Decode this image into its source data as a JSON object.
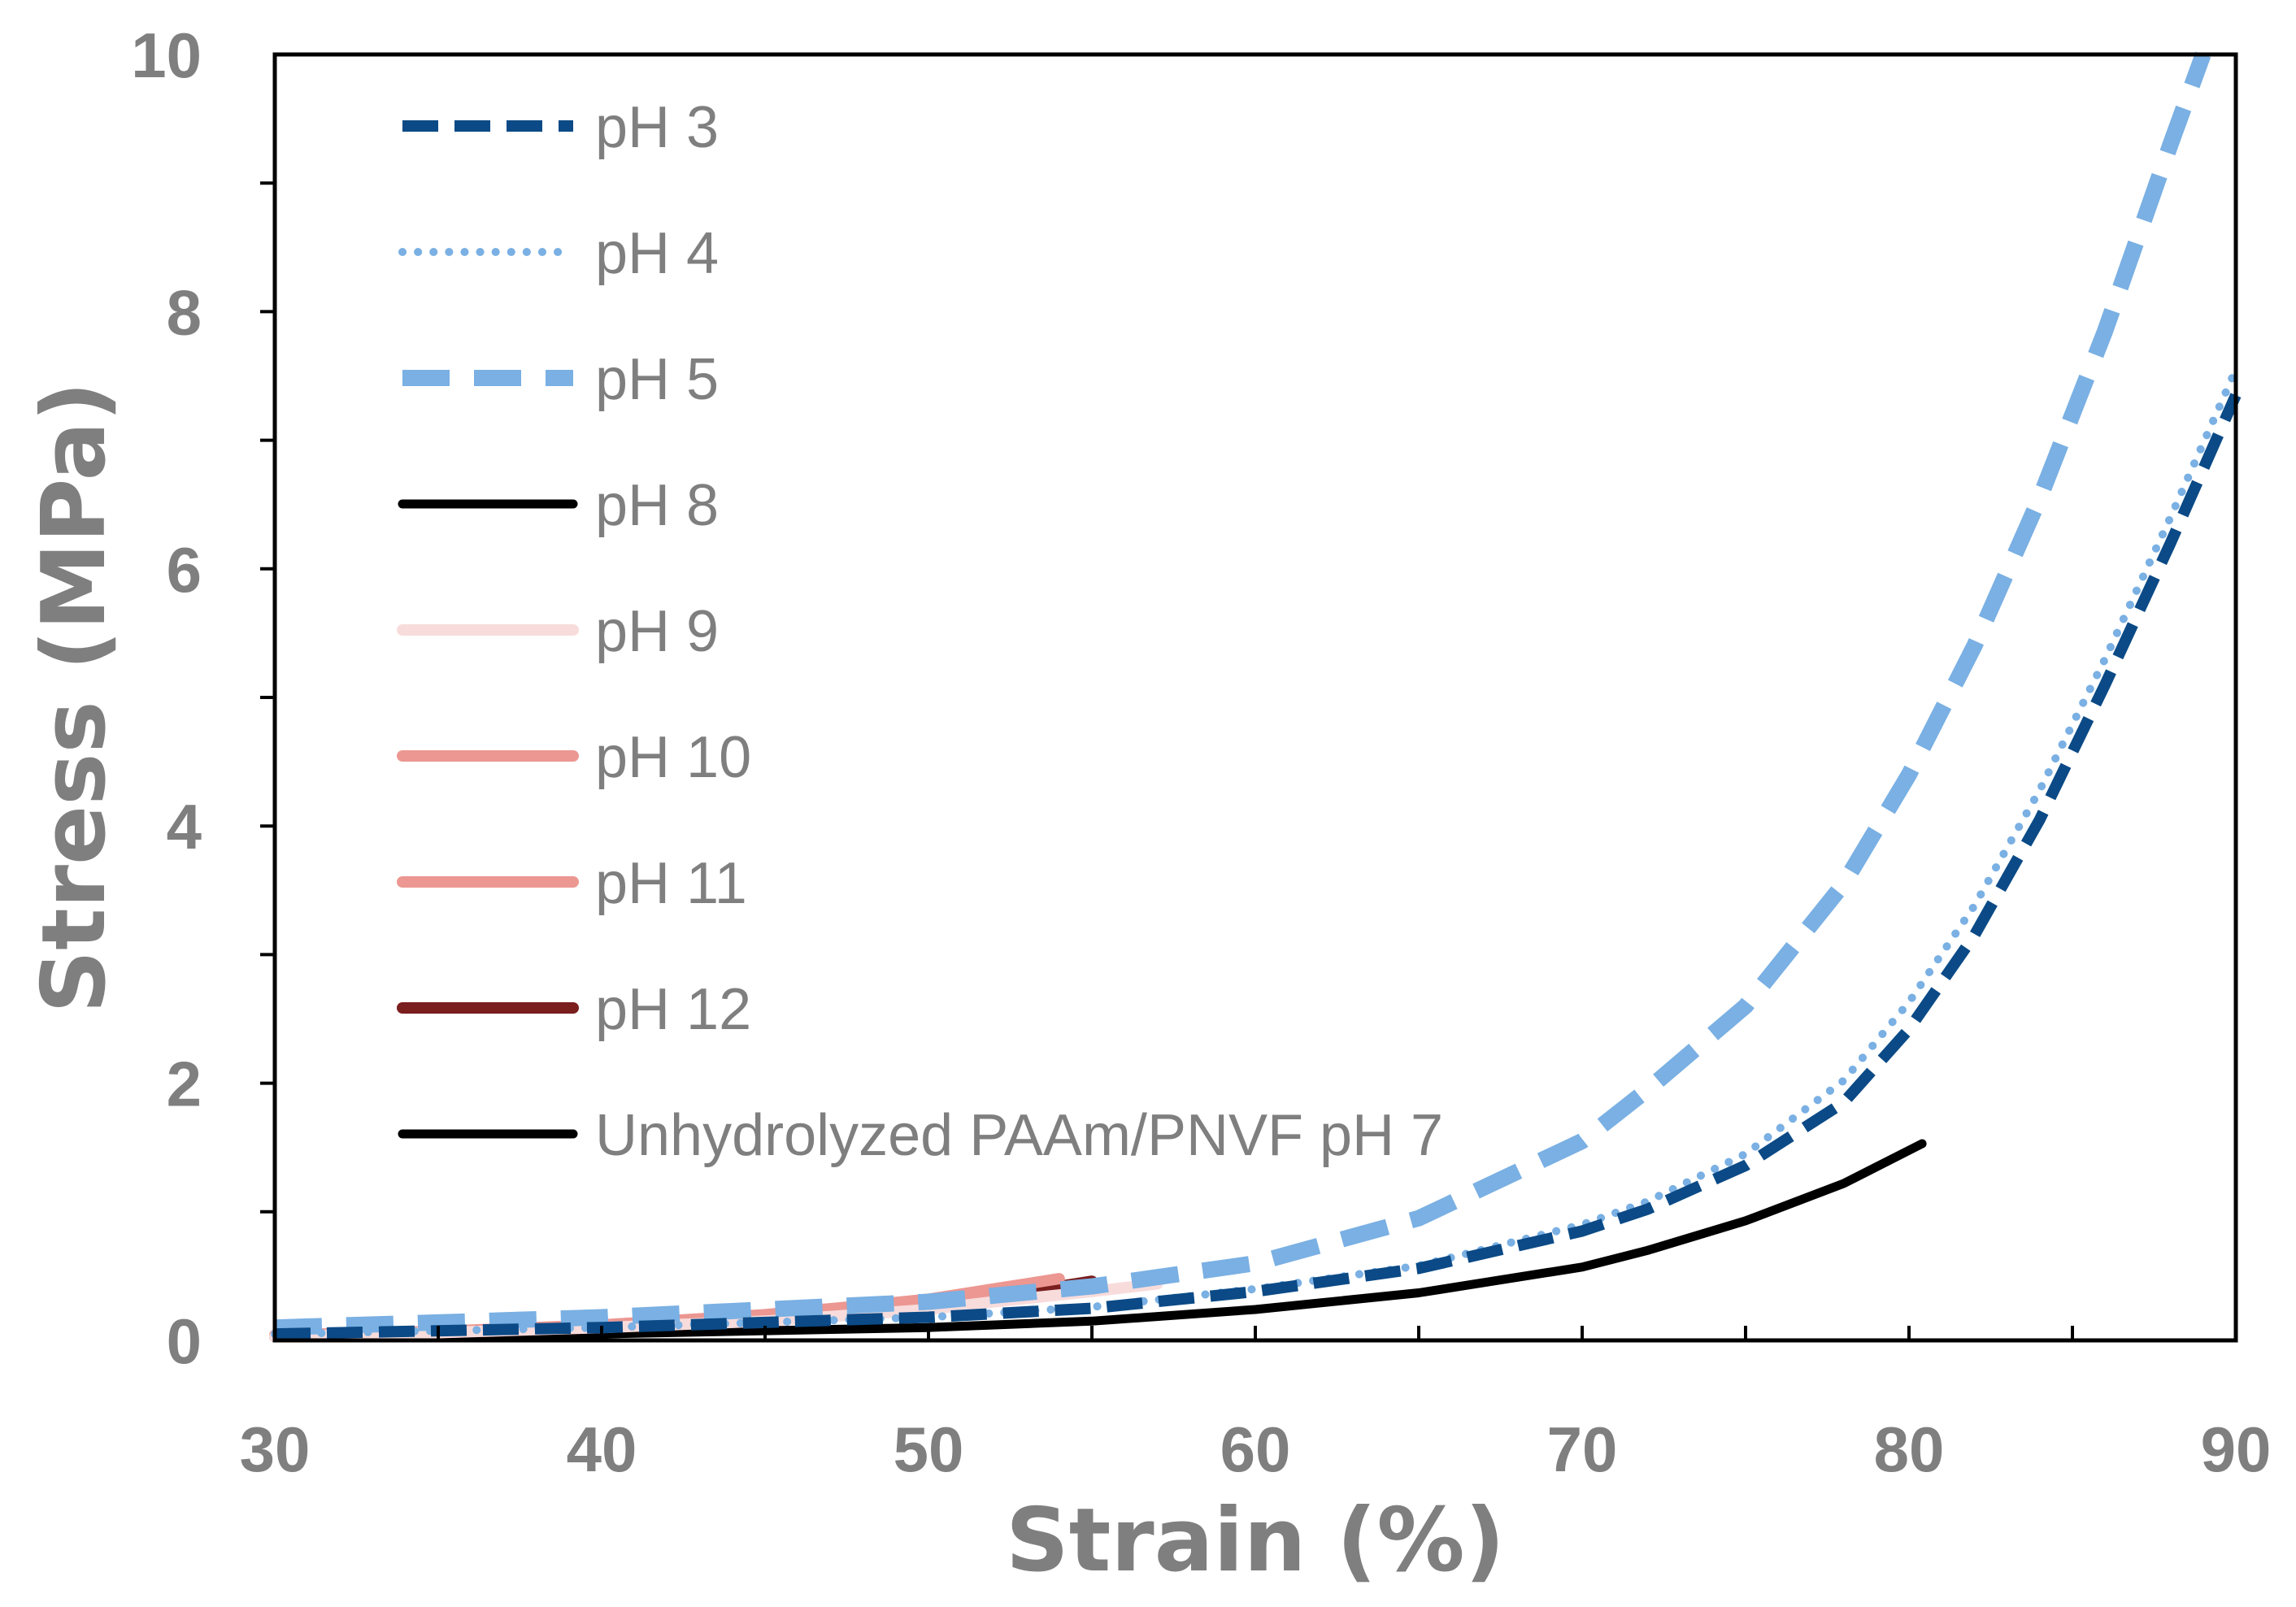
{
  "chart_data": {
    "type": "line",
    "title": "",
    "xlabel": "Strain (%)",
    "ylabel": "Stress (MPa)",
    "xlim": [
      30,
      90
    ],
    "ylim": [
      0,
      10
    ],
    "xticks": [
      30,
      40,
      50,
      60,
      70,
      80,
      90
    ],
    "yticks": [
      0,
      2,
      4,
      6,
      8,
      10
    ],
    "legend_position": "top-left",
    "series": [
      {
        "name": "pH 3",
        "color": "#0b4a86",
        "style": "dashed",
        "x": [
          30,
          40,
          50,
          55,
          60,
          65,
          70,
          72,
          75,
          78,
          80,
          82,
          84,
          86,
          88,
          90
        ],
        "y": [
          0.05,
          0.1,
          0.18,
          0.25,
          0.38,
          0.56,
          0.85,
          1.02,
          1.36,
          1.85,
          2.42,
          3.15,
          4.05,
          5.1,
          6.2,
          7.35
        ]
      },
      {
        "name": "pH 4",
        "color": "#7ab0e3",
        "style": "dotted",
        "x": [
          30,
          40,
          50,
          55,
          60,
          65,
          70,
          72,
          75,
          78,
          80,
          82,
          84,
          86,
          88,
          90
        ],
        "y": [
          0.05,
          0.1,
          0.18,
          0.26,
          0.4,
          0.58,
          0.9,
          1.08,
          1.45,
          2.02,
          2.63,
          3.38,
          4.28,
          5.3,
          6.4,
          7.55
        ]
      },
      {
        "name": "pH 5",
        "color": "#7ab0e3",
        "style": "dashed",
        "x": [
          30,
          40,
          50,
          55,
          60,
          65,
          70,
          72,
          75,
          78,
          80,
          82,
          84,
          86,
          88,
          89
        ],
        "y": [
          0.1,
          0.18,
          0.3,
          0.42,
          0.6,
          0.95,
          1.55,
          1.95,
          2.6,
          3.55,
          4.4,
          5.4,
          6.55,
          7.85,
          9.3,
          10.0
        ]
      },
      {
        "name": "pH 8",
        "color": "#000000",
        "style": "solid",
        "x": [],
        "y": []
      },
      {
        "name": "pH 9",
        "color": "#f8dcdc",
        "style": "solid",
        "x": [
          30,
          35,
          40,
          45,
          50,
          52,
          55,
          57
        ],
        "y": [
          0.03,
          0.06,
          0.1,
          0.15,
          0.24,
          0.3,
          0.38,
          0.44
        ]
      },
      {
        "name": "pH 10",
        "color": "#ec9792",
        "style": "solid",
        "x": [
          30,
          35,
          40,
          45,
          48,
          50,
          52,
          54
        ],
        "y": [
          0.04,
          0.07,
          0.12,
          0.2,
          0.27,
          0.32,
          0.4,
          0.48
        ]
      },
      {
        "name": "pH 11",
        "color": "#ec9792",
        "style": "solid",
        "x": [
          30,
          35,
          40,
          45,
          48,
          50,
          52
        ],
        "y": [
          0.04,
          0.07,
          0.11,
          0.19,
          0.25,
          0.3,
          0.37
        ]
      },
      {
        "name": "pH 12",
        "color": "#7a1e1e",
        "style": "solid",
        "x": [
          30,
          35,
          40,
          45,
          50,
          52,
          55
        ],
        "y": [
          0.03,
          0.06,
          0.1,
          0.17,
          0.28,
          0.34,
          0.46
        ]
      },
      {
        "name": "Unhydrolyzed PAAm/PNVF pH 7",
        "color": "#000000",
        "style": "solid",
        "x": [
          30,
          40,
          50,
          55,
          60,
          65,
          70,
          72,
          75,
          78,
          80.4
        ],
        "y": [
          0.02,
          0.05,
          0.1,
          0.15,
          0.24,
          0.37,
          0.57,
          0.7,
          0.93,
          1.22,
          1.53
        ]
      }
    ]
  }
}
